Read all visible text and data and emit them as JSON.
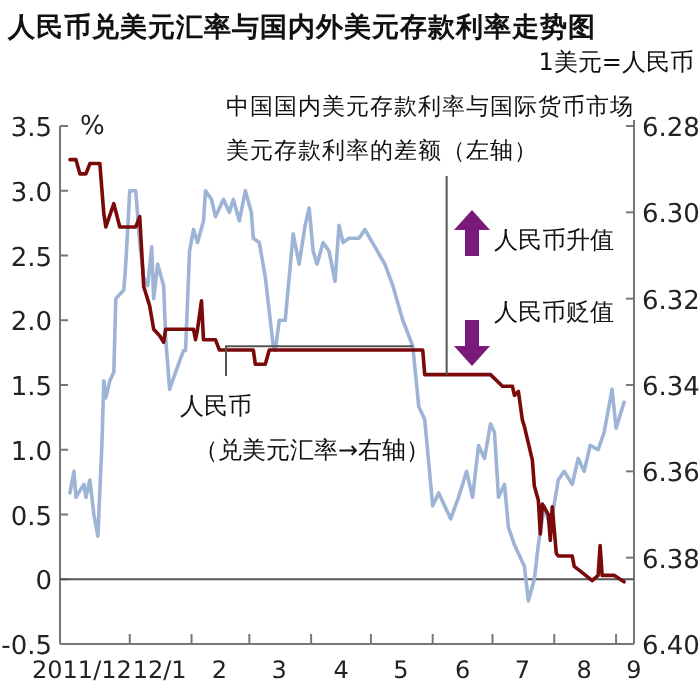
{
  "chart_data": {
    "type": "line",
    "title": "人民币兑美元汇率与国内外美元存款利率走势图",
    "ylabel": "%",
    "y2label": "1美元=人民币",
    "annotations": [
      {
        "text": "中国国内美元存款利率与国际货币市场美元存款利率的差额（左轴）",
        "x": "2012-06-08",
        "y": 1.58
      },
      {
        "text": "人民币",
        "x": "2012-05-22",
        "y": 1.8
      },
      "（兑美元汇率→右轴）",
      "人民币升值",
      "人民币贬值"
    ],
    "xlim": [
      "2011-11-27",
      "2012-09-10"
    ],
    "xticks": [
      {
        "value": "2011-12-08",
        "label": "2011/12"
      },
      {
        "value": "2012-01-01",
        "label": null
      },
      {
        "value": "2012-01-16",
        "label": "12/1"
      },
      {
        "value": "2012-02-01",
        "label": null
      },
      {
        "value": "2012-02-15",
        "label": "2"
      },
      {
        "value": "2012-03-01",
        "label": null
      },
      {
        "value": "2012-03-16",
        "label": "3"
      },
      {
        "value": "2012-04-01",
        "label": null
      },
      {
        "value": "2012-04-16",
        "label": "4"
      },
      {
        "value": "2012-05-01",
        "label": null
      },
      {
        "value": "2012-05-16",
        "label": "5"
      },
      {
        "value": "2012-06-01",
        "label": null
      },
      {
        "value": "2012-06-16",
        "label": "6"
      },
      {
        "value": "2012-07-01",
        "label": null
      },
      {
        "value": "2012-07-16",
        "label": "7"
      },
      {
        "value": "2012-08-01",
        "label": null
      },
      {
        "value": "2012-08-16",
        "label": "8"
      },
      {
        "value": "2012-09-01",
        "label": null
      },
      {
        "value": "2012-09-10",
        "label": "9"
      }
    ],
    "ylim": [
      -0.5,
      3.5
    ],
    "yticks": [
      3.5,
      {
        "value": 3,
        "label": "3.0"
      },
      2.5,
      {
        "value": 2,
        "label": "2.0"
      },
      1.5,
      {
        "value": 1,
        "label": "1.0"
      },
      0.5,
      0,
      {
        "value": -0.5,
        "label": "-0.5"
      }
    ],
    "y2lim": [
      6.4,
      6.28
    ],
    "y2ticks": [
      6.28,
      {
        "value": 6.3,
        "label": "6.30"
      },
      6.32,
      6.34,
      6.36,
      6.38,
      {
        "value": 6.4,
        "label": "6.40"
      }
    ],
    "ref_lines": [
      {
        "axis": "y",
        "value": 0,
        "color": "#555555"
      }
    ],
    "grid": false,
    "marker": "none",
    "line_style": "solid",
    "series": [
      {
        "color": "#9db4d6",
        "axis": "y2",
        "x": [
          "2011-12-02",
          "2011-12-04",
          "2011-12-05",
          "2011-12-09",
          "2011-12-10",
          "2011-12-12",
          "2011-12-14",
          "2011-12-16",
          "2011-12-18",
          "2011-12-19",
          "2011-12-20",
          "2011-12-22",
          "2011-12-24",
          "2011-12-25",
          "2011-12-29",
          "2011-12-30",
          "2012-01-01",
          "2012-01-04",
          "2012-01-06",
          "2012-01-08",
          "2012-01-10",
          "2012-01-12",
          "2012-01-13",
          "2012-01-15",
          "2012-01-18",
          "2012-01-19",
          "2012-01-21",
          "2012-01-24",
          "2012-01-28",
          "2012-01-29",
          "2012-01-31",
          "2012-02-02",
          "2012-02-04",
          "2012-02-07",
          "2012-02-08",
          "2012-02-11",
          "2012-02-13",
          "2012-02-17",
          "2012-02-20",
          "2012-02-22",
          "2012-02-25",
          "2012-02-28",
          "2012-03-02",
          "2012-03-03",
          "2012-03-06",
          "2012-03-09",
          "2012-03-11",
          "2012-03-13",
          "2012-03-14",
          "2012-03-16",
          "2012-03-19",
          "2012-03-21",
          "2012-03-23",
          "2012-03-26",
          "2012-03-29",
          "2012-03-31",
          "2012-04-02",
          "2012-04-04",
          "2012-04-07",
          "2012-04-10",
          "2012-04-13",
          "2012-04-15",
          "2012-04-17",
          "2012-04-20",
          "2012-04-25",
          "2012-04-28",
          "2012-05-03",
          "2012-05-08",
          "2012-05-12",
          "2012-05-17",
          "2012-05-22",
          "2012-05-25",
          "2012-05-28",
          "2012-06-01",
          "2012-06-04",
          "2012-06-06",
          "2012-06-10",
          "2012-06-14",
          "2012-06-18",
          "2012-06-21",
          "2012-06-24",
          "2012-06-27",
          "2012-06-30",
          "2012-07-02",
          "2012-07-04",
          "2012-07-07",
          "2012-07-09",
          "2012-07-12",
          "2012-07-17",
          "2012-07-19",
          "2012-07-22",
          "2012-07-24",
          "2012-07-27",
          "2012-07-30",
          "2012-08-03",
          "2012-08-06",
          "2012-08-10",
          "2012-08-13",
          "2012-08-16",
          "2012-08-19",
          "2012-08-23",
          "2012-08-26",
          "2012-08-30",
          "2012-09-01",
          "2012-09-05"
        ],
        "values": [
          6.365,
          6.36,
          6.366,
          6.363,
          6.366,
          6.362,
          6.37,
          6.375,
          6.354,
          6.339,
          6.343,
          6.339,
          6.337,
          6.32,
          6.318,
          6.312,
          6.295,
          6.295,
          6.307,
          6.315,
          6.317,
          6.308,
          6.32,
          6.312,
          6.317,
          6.329,
          6.341,
          6.337,
          6.332,
          6.332,
          6.309,
          6.304,
          6.307,
          6.302,
          6.295,
          6.297,
          6.301,
          6.297,
          6.3,
          6.297,
          6.302,
          6.295,
          6.3,
          6.306,
          6.307,
          6.315,
          6.323,
          6.331,
          6.332,
          6.325,
          6.325,
          6.315,
          6.305,
          6.312,
          6.303,
          6.299,
          6.309,
          6.312,
          6.307,
          6.309,
          6.316,
          6.303,
          6.307,
          6.306,
          6.306,
          6.304,
          6.308,
          6.312,
          6.317,
          6.325,
          6.331,
          6.345,
          6.348,
          6.368,
          6.365,
          6.367,
          6.371,
          6.366,
          6.36,
          6.366,
          6.354,
          6.357,
          6.349,
          6.351,
          6.366,
          6.363,
          6.373,
          6.377,
          6.382,
          6.39,
          6.385,
          6.377,
          6.368,
          6.373,
          6.362,
          6.36,
          6.363,
          6.357,
          6.36,
          6.354,
          6.355,
          6.351,
          6.341,
          6.35,
          6.344
        ]
      },
      {
        "color": "#7a0a0a",
        "x": [
          "2011-12-02",
          "2011-12-05",
          "2011-12-07",
          "2011-12-10",
          "2011-12-12",
          "2011-12-17",
          "2011-12-19",
          "2011-12-20",
          "2011-12-24",
          "2011-12-27",
          "2012-01-04",
          "2012-01-06",
          "2012-01-08",
          "2012-01-11",
          "2012-01-13",
          "2012-01-16",
          "2012-01-18",
          "2012-01-19",
          "2012-02-02",
          "2012-02-03",
          "2012-02-04",
          "2012-02-06",
          "2012-02-07",
          "2012-02-13",
          "2012-02-15",
          "2012-03-03",
          "2012-03-04",
          "2012-03-09",
          "2012-03-11",
          "2012-05-27",
          "2012-05-28",
          "2012-06-30",
          "2012-07-06",
          "2012-07-11",
          "2012-07-12",
          "2012-07-14",
          "2012-07-16",
          "2012-07-17",
          "2012-07-21",
          "2012-07-22",
          "2012-07-24",
          "2012-07-25",
          "2012-07-26",
          "2012-07-29",
          "2012-07-30",
          "2012-07-31",
          "2012-08-02",
          "2012-08-03",
          "2012-08-10",
          "2012-08-11",
          "2012-08-16",
          "2012-08-20",
          "2012-08-23",
          "2012-08-24",
          "2012-08-25",
          "2012-08-31",
          "2012-09-05"
        ],
        "values": [
          3.24,
          3.24,
          3.13,
          3.13,
          3.21,
          3.21,
          2.82,
          2.72,
          2.9,
          2.72,
          2.72,
          2.8,
          2.26,
          2.11,
          1.93,
          1.88,
          1.83,
          1.93,
          1.93,
          1.85,
          1.93,
          2.15,
          1.85,
          1.85,
          1.77,
          1.77,
          1.66,
          1.66,
          1.77,
          1.77,
          1.58,
          1.58,
          1.49,
          1.49,
          1.42,
          1.45,
          1.23,
          1.18,
          0.92,
          0.72,
          0.61,
          0.35,
          0.58,
          0.5,
          0.3,
          0.56,
          0.2,
          0.18,
          0.18,
          0.1,
          0.04,
          -0.01,
          0.03,
          0.26,
          0.03,
          0.03,
          -0.02
        ]
      }
    ]
  }
}
